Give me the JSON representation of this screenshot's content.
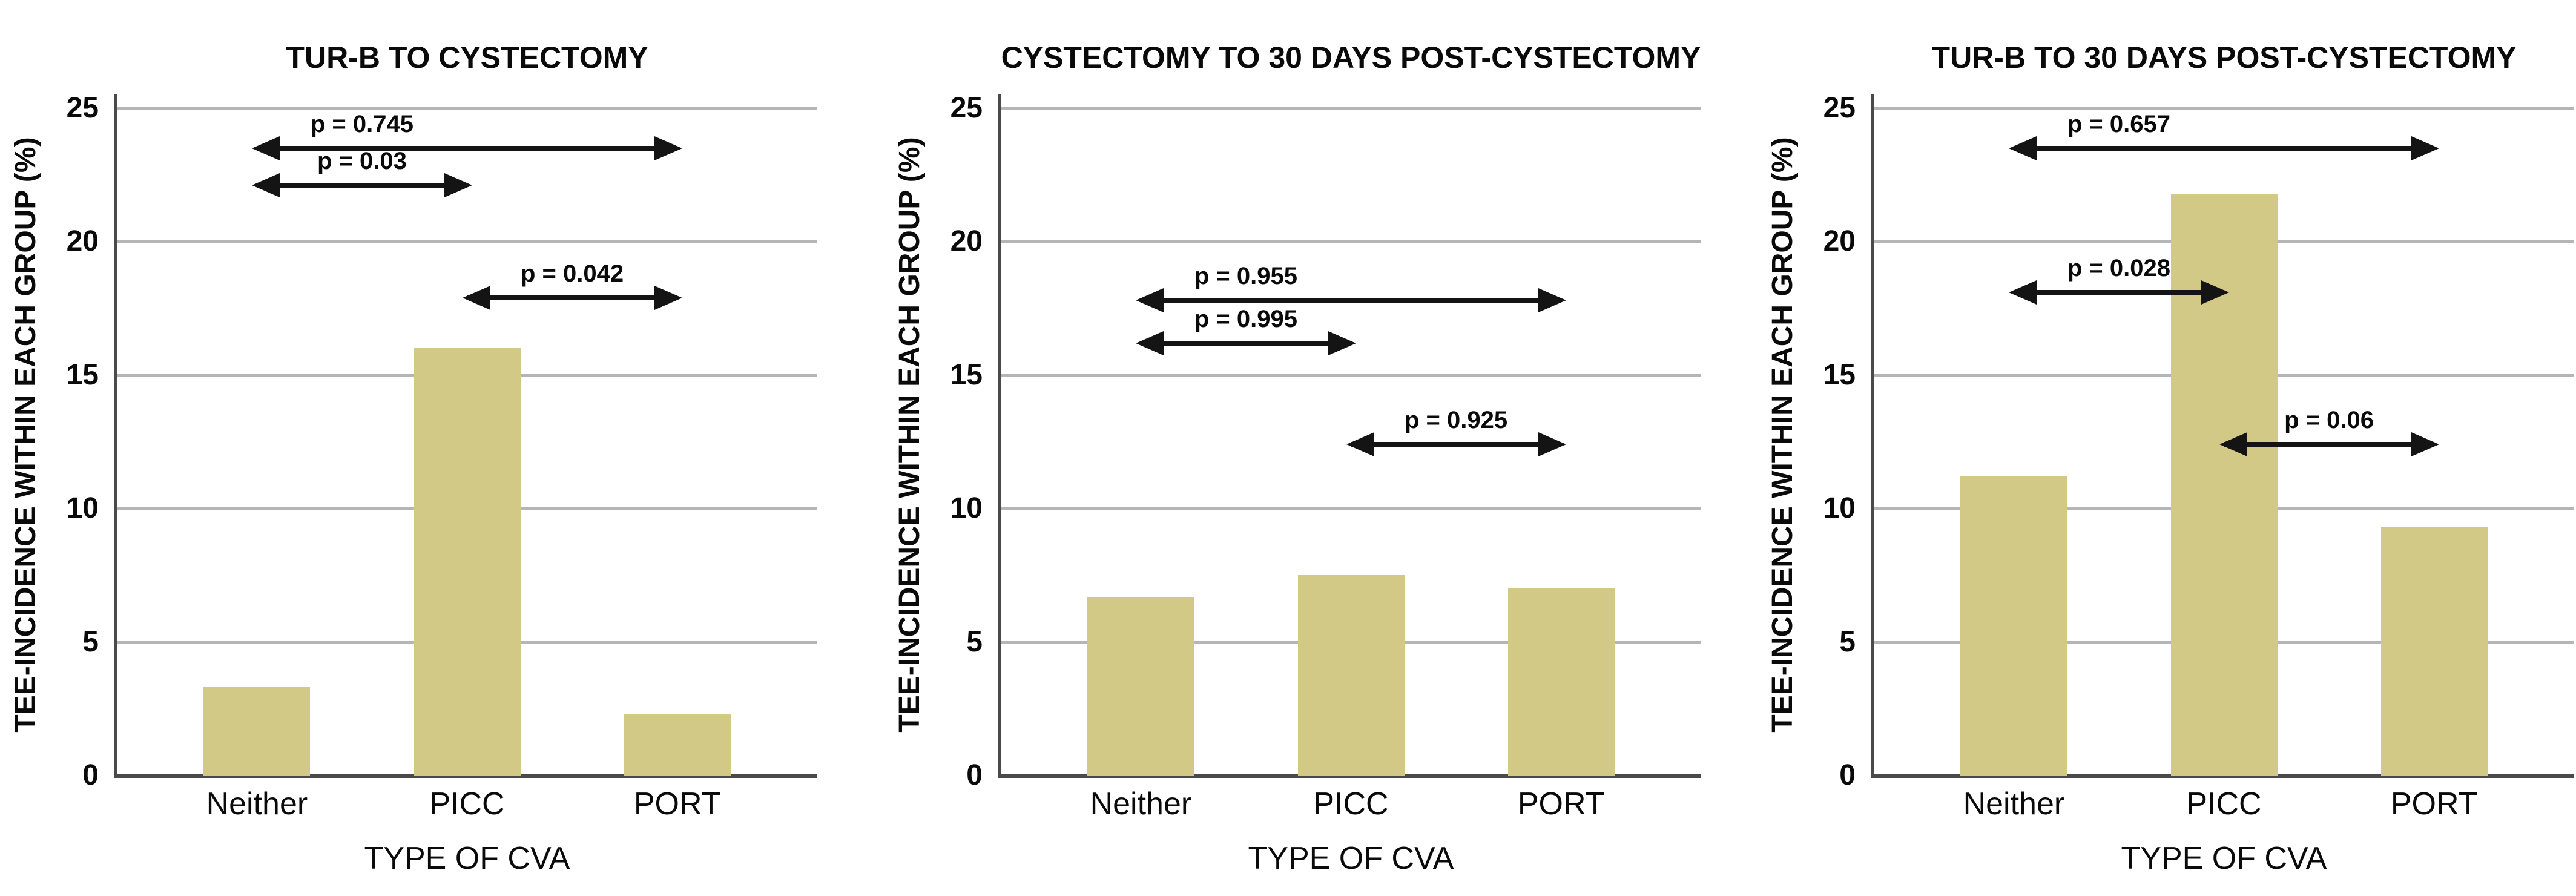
{
  "figure": {
    "background": "#ffffff",
    "bar_color": "#d3c986",
    "gridline_color": "#b5b5b5",
    "axis_color": "#4a4a4a",
    "arrow_color": "#141414",
    "text_color": "#0a0a0a"
  },
  "chart_data": [
    {
      "type": "bar",
      "title": "TUR-B TO CYSTECTOMY",
      "categories": [
        "Neither",
        "PICC",
        "PORT"
      ],
      "values": [
        3.3,
        16.0,
        2.3
      ],
      "xlabel": "TYPE OF CVA",
      "ylabel": "TEE-INCIDENCE WITHIN EACH GROUP (%)",
      "ylim": [
        0,
        25.5
      ],
      "yticks": [
        0,
        5,
        10,
        15,
        20,
        25
      ],
      "grid": "horizontal",
      "legend": "none",
      "annotations": [
        {
          "text": "p = 0.745",
          "from": 0,
          "to": 2,
          "y": 23.5
        },
        {
          "text": "p = 0.03",
          "from": 0,
          "to": 1,
          "y": 22.1
        },
        {
          "text": "p = 0.042",
          "from": 1,
          "to": 2,
          "y": 17.9
        }
      ]
    },
    {
      "type": "bar",
      "title": "CYSTECTOMY TO 30 DAYS POST-CYSTECTOMY",
      "categories": [
        "Neither",
        "PICC",
        "PORT"
      ],
      "values": [
        6.7,
        7.5,
        7.0
      ],
      "xlabel": "TYPE OF CVA",
      "ylabel": "TEE-INCIDENCE WITHIN EACH GROUP (%)",
      "ylim": [
        0,
        25.5
      ],
      "yticks": [
        0,
        5,
        10,
        15,
        20,
        25
      ],
      "grid": "horizontal",
      "legend": "none",
      "annotations": [
        {
          "text": "p = 0.955",
          "from": 0,
          "to": 2,
          "y": 17.8
        },
        {
          "text": "p = 0.995",
          "from": 0,
          "to": 1,
          "y": 16.2
        },
        {
          "text": "p = 0.925",
          "from": 1,
          "to": 2,
          "y": 12.4
        }
      ]
    },
    {
      "type": "bar",
      "title": "TUR-B TO 30 DAYS POST-CYSTECTOMY",
      "categories": [
        "Neither",
        "PICC",
        "PORT"
      ],
      "values": [
        11.2,
        21.8,
        9.3
      ],
      "xlabel": "TYPE OF CVA",
      "ylabel": "TEE-INCIDENCE WITHIN EACH GROUP (%)",
      "ylim": [
        0,
        25.5
      ],
      "yticks": [
        0,
        5,
        10,
        15,
        20,
        25
      ],
      "grid": "horizontal",
      "legend": "none",
      "annotations": [
        {
          "text": "p = 0.657",
          "from": 0,
          "to": 2,
          "y": 23.5
        },
        {
          "text": "p = 0.028",
          "from": 0,
          "to": 1,
          "y": 18.1
        },
        {
          "text": "p = 0.06",
          "from": 1,
          "to": 2,
          "y": 12.4
        }
      ]
    }
  ]
}
